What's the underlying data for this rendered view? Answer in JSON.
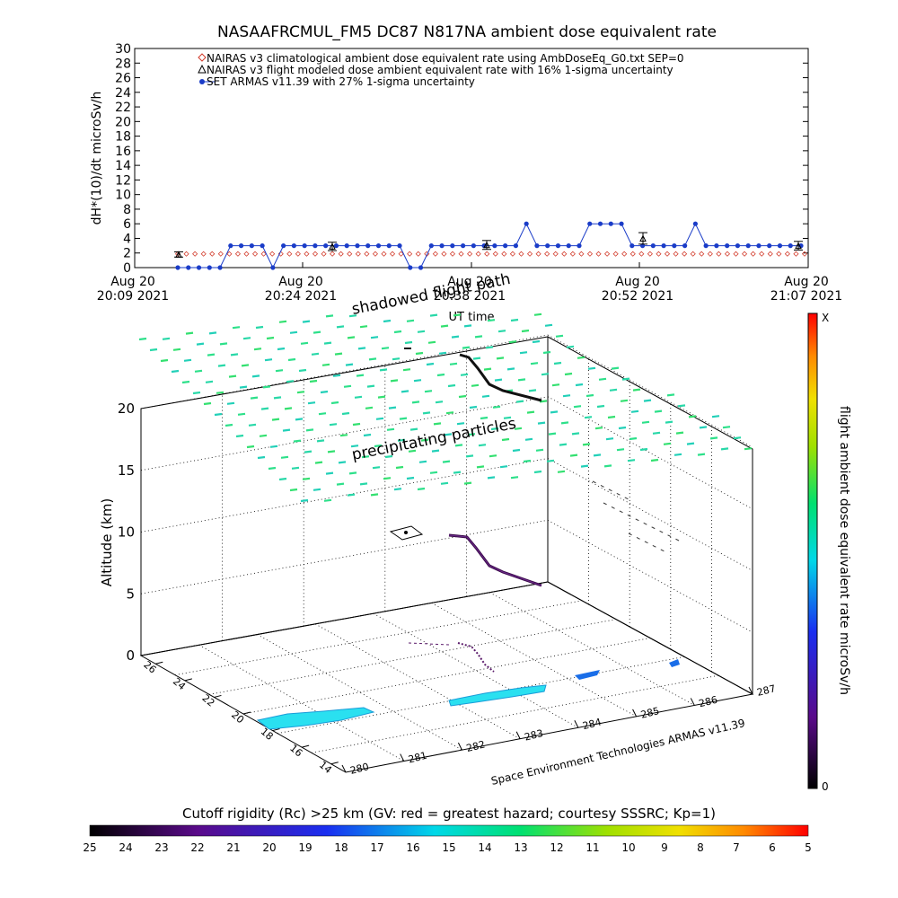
{
  "chart_data": [
    {
      "type": "scatter",
      "title": "NASAAFRCMUL_FM5 DC87 N817NA ambient dose equivalent rate",
      "xlabel": "UT time",
      "ylabel": "dH*(10)/dt microSv/h",
      "ylim": [
        0,
        30
      ],
      "yticks": [
        "0",
        "2",
        "4",
        "6",
        "8",
        "10",
        "12",
        "14",
        "16",
        "18",
        "20",
        "22",
        "24",
        "26",
        "28",
        "30"
      ],
      "xticks": [
        {
          "date": "Aug 20",
          "time": "20:09 2021"
        },
        {
          "date": "Aug 20",
          "time": "20:24 2021"
        },
        {
          "date": "Aug 20",
          "time": "20:38 2021"
        },
        {
          "date": "Aug 20",
          "time": "20:52 2021"
        },
        {
          "date": "Aug 20",
          "time": "21:07 2021"
        }
      ],
      "legend_position": "top-left",
      "series": [
        {
          "name": "NAIRAS v3 climatological ambient dose equivalent rate using AmbDoseEq_G0.txt SEP=0",
          "marker": "diamond",
          "color": "#d23a2a",
          "values": [
            2,
            2,
            2,
            2,
            2,
            2,
            2,
            2,
            2,
            2,
            2,
            2,
            2,
            2,
            2,
            2,
            2,
            2,
            2,
            2,
            2,
            2,
            2,
            2,
            2,
            2,
            2,
            2,
            2,
            2,
            2,
            2,
            2,
            2,
            2,
            2,
            2,
            2,
            2,
            2,
            2,
            2,
            2,
            2,
            2,
            2,
            2,
            2,
            2,
            2,
            2,
            2,
            2,
            2,
            2,
            2,
            2,
            2,
            2,
            2,
            2,
            2,
            2,
            2,
            2,
            2,
            2,
            2,
            2,
            2,
            2,
            2,
            2,
            2
          ]
        },
        {
          "name": "NAIRAS v3 flight modeled dose ambient equivalent rate with 16% 1-sigma uncertainty",
          "marker": "triangle",
          "color": "#000000",
          "points": [
            {
              "t": "20:14",
              "y": 1.8
            },
            {
              "t": "20:28",
              "y": 2.9
            },
            {
              "t": "20:42",
              "y": 3.1
            },
            {
              "t": "20:55",
              "y": 4.0
            },
            {
              "t": "21:07",
              "y": 3.0
            }
          ]
        },
        {
          "name": "SET ARMAS v11.39 with 27% 1-sigma uncertainty",
          "marker": "circle",
          "color": "#1a3cc8",
          "values": [
            0,
            0,
            0,
            0,
            0,
            3,
            3,
            3,
            3,
            0,
            3,
            3,
            3,
            3,
            3,
            3,
            3,
            3,
            3,
            3,
            3,
            3,
            0,
            0,
            3,
            3,
            3,
            3,
            3,
            3,
            3,
            3,
            3,
            6,
            3,
            3,
            3,
            3,
            3,
            6,
            6,
            6,
            6,
            3,
            3,
            3,
            3,
            3,
            3,
            6,
            3,
            3,
            3,
            3,
            3,
            3,
            3,
            3,
            3,
            3
          ]
        }
      ]
    },
    {
      "type": "scatter",
      "title": "",
      "zlabel": "Altitude (km)",
      "zlim": [
        0,
        20
      ],
      "zticks": [
        "0",
        "5",
        "10",
        "15",
        "20"
      ],
      "xticks": [
        "280",
        "281",
        "282",
        "283",
        "284",
        "285",
        "286",
        "287"
      ],
      "yticks": [
        "14",
        "16",
        "18",
        "20",
        "22",
        "24",
        "26"
      ],
      "annotations": [
        "shadowed flight path",
        "precipitating particles"
      ],
      "credit": "Space Environment Technologies ARMAS v11.39",
      "colorbar": {
        "label": "flight ambient dose equivalent rate microSv/h",
        "max_label": "X",
        "min_label": "0"
      }
    },
    {
      "type": "heatmap",
      "title": "Cutoff rigidity (Rc) >25 km (GV: red = greatest hazard; courtesy SSSRC; Kp=1)",
      "categories": [
        "25",
        "24",
        "23",
        "22",
        "21",
        "20",
        "19",
        "18",
        "17",
        "16",
        "15",
        "14",
        "13",
        "12",
        "11",
        "10",
        "9",
        "8",
        "7",
        "6",
        "5"
      ]
    }
  ]
}
